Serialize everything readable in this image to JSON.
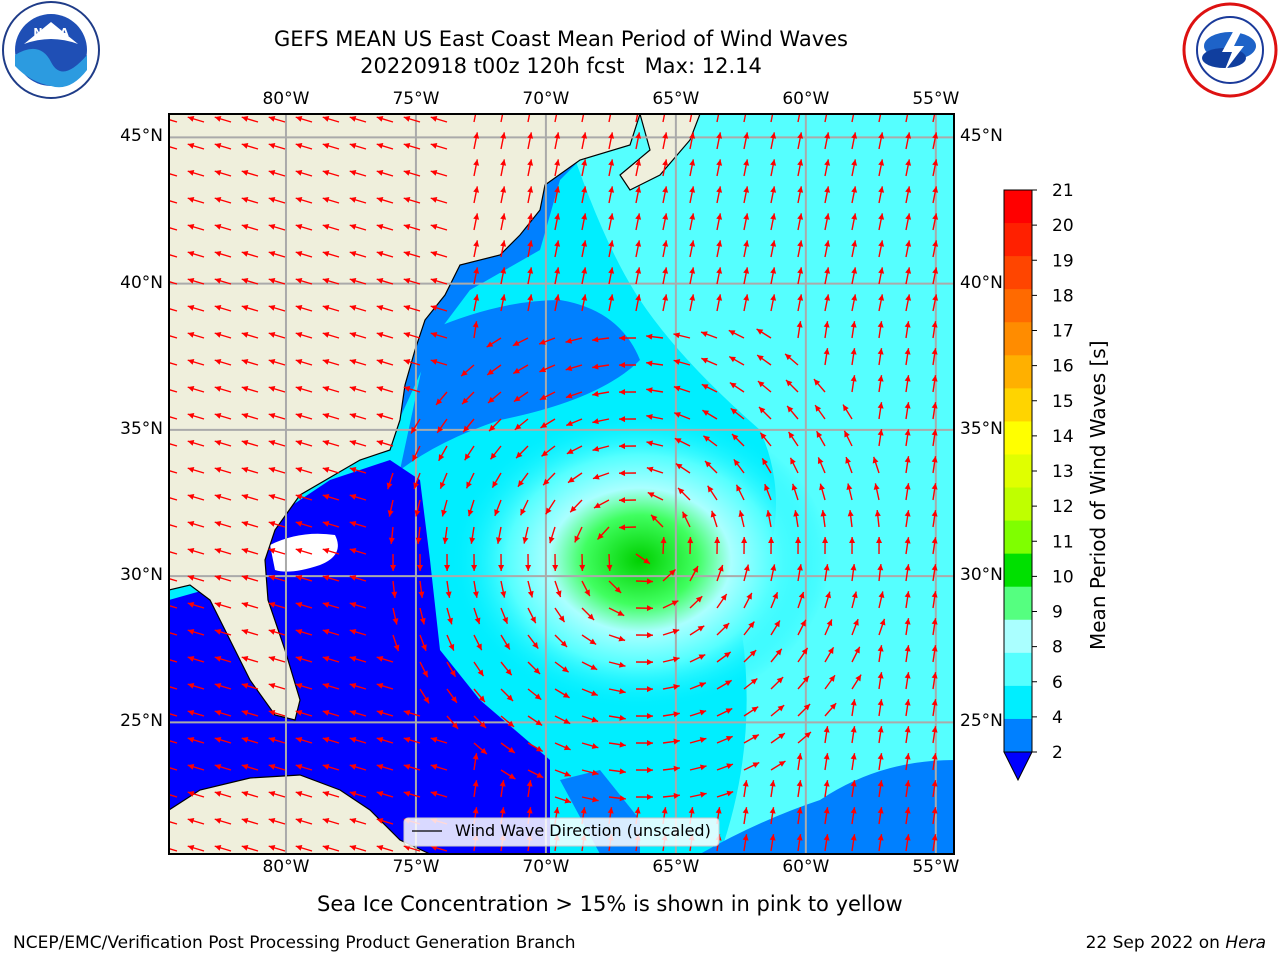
{
  "header": {
    "title_line1": "GEFS MEAN US East Coast Mean Period of Wind Waves",
    "title_line2": "20220918 t00z 120h fcst   Max: 12.14"
  },
  "logos": {
    "left": "NOAA",
    "left_ring_text": "NATIONAL OCEANIC AND ATMOSPHERIC ADMINISTRATION · U.S. DEPARTMENT OF COMMERCE",
    "right_ring_text": "NATIONAL WEATHER SERVICE"
  },
  "map": {
    "lon_labels": [
      "80°W",
      "75°W",
      "70°W",
      "65°W",
      "60°W",
      "55°W"
    ],
    "lat_labels": [
      "45°N",
      "40°N",
      "35°N",
      "30°N",
      "25°N"
    ],
    "legend_label": "Wind Wave Direction (unscaled)",
    "max_value": 12.14,
    "extent": {
      "lon_min": -84.5,
      "lon_max": -54.3,
      "lat_min": 20.5,
      "lat_max": 45.8
    }
  },
  "colorbar": {
    "label": "Mean Period of Wind Waves [s]",
    "ticks": [
      "21",
      "20",
      "19",
      "18",
      "17",
      "16",
      "15",
      "14",
      "13",
      "12",
      "11",
      "10",
      "9",
      "8",
      "6",
      "4",
      "2"
    ],
    "colors": [
      "#ff0000",
      "#ff2000",
      "#ff4500",
      "#ff6a00",
      "#ff8c00",
      "#ffb000",
      "#ffd400",
      "#ffff00",
      "#e0ff00",
      "#bfff00",
      "#7fff00",
      "#00e000",
      "#55ff80",
      "#aaffff",
      "#55ffff",
      "#00eeff",
      "#0080ff"
    ],
    "under_color": "#0000ff"
  },
  "footer": {
    "sea_ice_note": "Sea Ice Concentration > 15% is shown in pink to yellow",
    "producer": "NCEP/EMC/Verification Post Processing Product Generation Branch",
    "date_prefix": "22 Sep 2022 on ",
    "machine": "Hera"
  },
  "style": {
    "land_color": "#efefdc",
    "arrow_color": "#ff0000",
    "grid_color": "#aaaaaa"
  }
}
